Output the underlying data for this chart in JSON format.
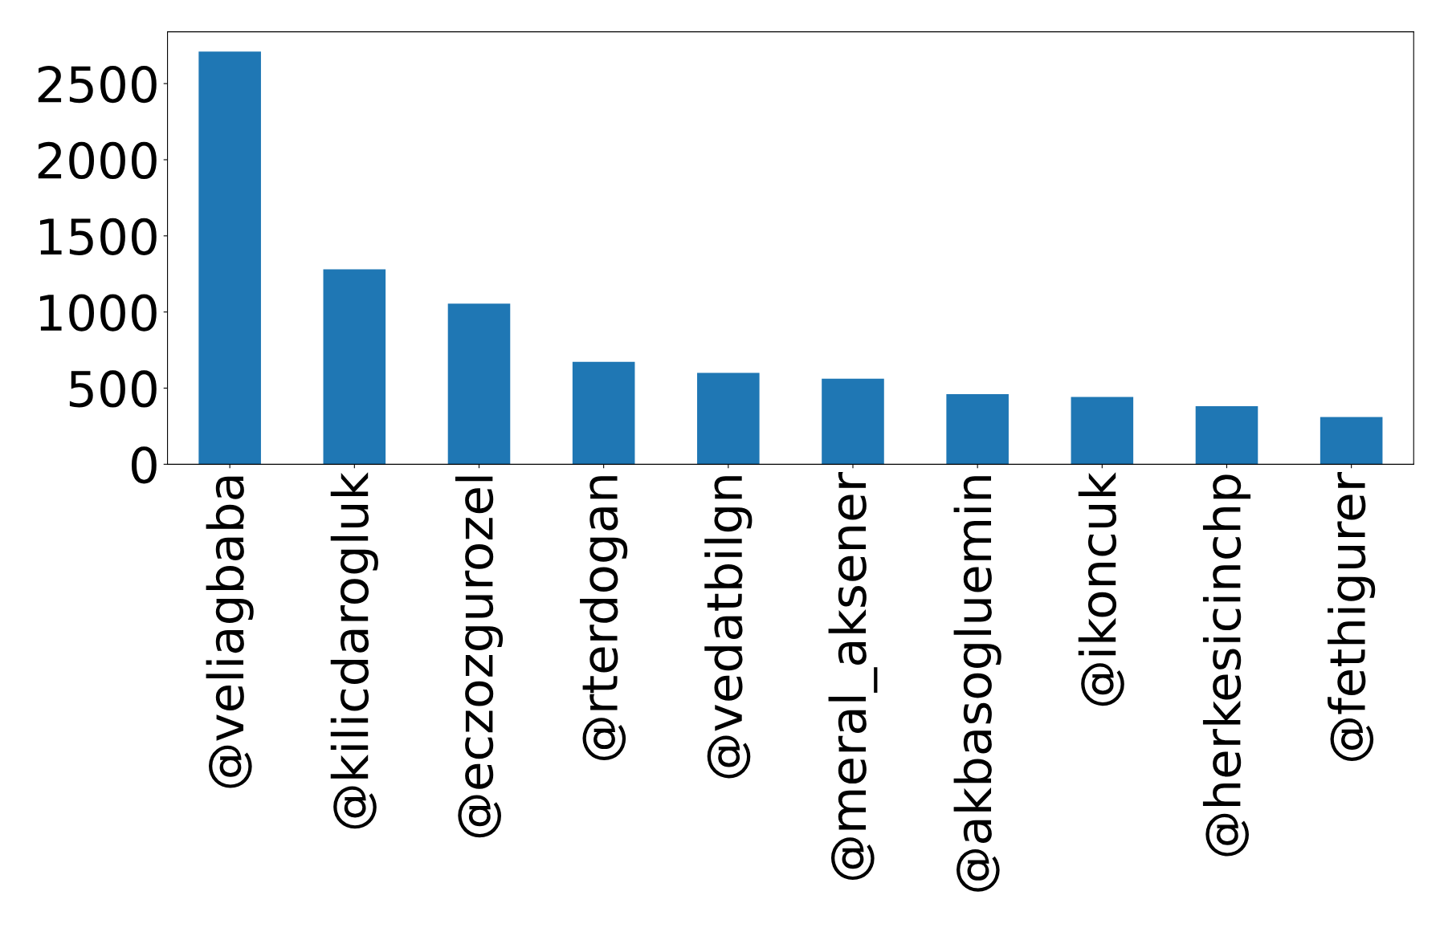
{
  "chart_data": {
    "type": "bar",
    "categories": [
      "@veliagbaba",
      "@kilicdarogluk",
      "@eczozgurozel",
      "@rterdogan",
      "@vedatbilgn",
      "@meral_aksener",
      "@akbasogluemin",
      "@ikoncuk",
      "@herkesicinchp",
      "@fethigurer"
    ],
    "values": [
      2710,
      1280,
      1055,
      672,
      600,
      562,
      460,
      442,
      382,
      310
    ],
    "color": "#1f77b4",
    "ylim": [
      0,
      2840
    ],
    "yticks": [
      0,
      500,
      1000,
      1500,
      2000,
      2500
    ],
    "grid": false,
    "legend": false
  }
}
